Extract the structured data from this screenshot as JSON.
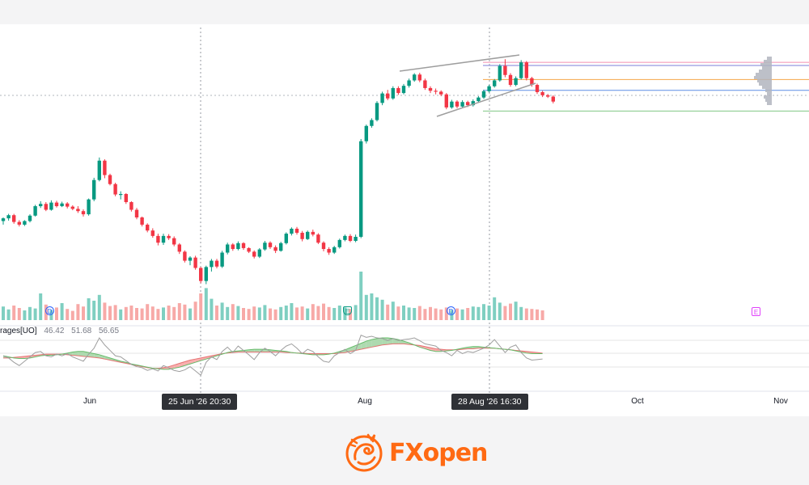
{
  "chart_data": {
    "type": "candlestick",
    "title": "",
    "xlabel": "",
    "ylabel": "",
    "x_ticks": [
      "Jun",
      "Aug",
      "Oct",
      "Nov"
    ],
    "crosshair_labels": [
      "25 Jun '26   20:30",
      "28 Aug '26   16:30"
    ],
    "indicator": {
      "label": "rages[UO]",
      "values": [
        "46.42",
        "51.68",
        "56.65"
      ]
    },
    "events": {
      "dividends": [
        "D",
        "D"
      ],
      "earnings": [
        "E",
        "E"
      ]
    },
    "colors": {
      "up": "#089981",
      "down": "#f23645",
      "up_volume": "#7fcfc1",
      "down_volume": "#f7a9a7",
      "ma_bull_fill": "#a5d6a7",
      "ma_bear_fill": "#f8a5a5",
      "trendline": "#9e9e9e"
    },
    "candles": [
      [
        96.8,
        97.6,
        96.0,
        97.4
      ],
      [
        97.4,
        98.4,
        96.9,
        98.1
      ],
      [
        98.1,
        98.4,
        96.2,
        96.6
      ],
      [
        96.6,
        97.0,
        95.6,
        96.0
      ],
      [
        96.0,
        97.0,
        95.7,
        96.8
      ],
      [
        96.8,
        98.3,
        96.5,
        98.0
      ],
      [
        98.0,
        100.4,
        97.8,
        100.1
      ],
      [
        100.1,
        101.2,
        99.7,
        100.6
      ],
      [
        100.6,
        101.0,
        99.0,
        99.3
      ],
      [
        99.3,
        101.4,
        99.1,
        100.9
      ],
      [
        100.9,
        101.3,
        99.8,
        100.1
      ],
      [
        100.1,
        101.1,
        99.9,
        100.7
      ],
      [
        100.7,
        101.0,
        99.6,
        100.0
      ],
      [
        100.0,
        100.3,
        99.2,
        99.5
      ],
      [
        99.5,
        100.1,
        98.6,
        99.0
      ],
      [
        99.0,
        99.4,
        97.8,
        98.3
      ],
      [
        98.3,
        101.8,
        98.0,
        101.6
      ],
      [
        101.6,
        106.4,
        101.2,
        105.9
      ],
      [
        105.9,
        110.9,
        105.6,
        110.2
      ],
      [
        110.2,
        110.5,
        106.3,
        107.0
      ],
      [
        107.0,
        107.3,
        104.7,
        105.0
      ],
      [
        105.0,
        105.3,
        102.3,
        102.7
      ],
      [
        102.7,
        103.4,
        101.6,
        102.8
      ],
      [
        102.8,
        103.0,
        100.6,
        101.0
      ],
      [
        101.0,
        101.2,
        98.9,
        99.3
      ],
      [
        99.3,
        99.7,
        97.2,
        97.6
      ],
      [
        97.6,
        97.8,
        95.6,
        96.0
      ],
      [
        96.0,
        96.3,
        94.3,
        94.7
      ],
      [
        94.7,
        95.2,
        93.1,
        93.5
      ],
      [
        93.5,
        94.0,
        91.4,
        92.0
      ],
      [
        92.0,
        94.0,
        91.5,
        93.5
      ],
      [
        93.5,
        93.9,
        92.6,
        93.0
      ],
      [
        93.0,
        93.4,
        91.2,
        91.6
      ],
      [
        91.6,
        91.9,
        89.5,
        90.0
      ],
      [
        90.0,
        90.3,
        87.6,
        88.0
      ],
      [
        88.0,
        89.0,
        87.0,
        88.7
      ],
      [
        88.7,
        89.1,
        86.0,
        86.4
      ],
      [
        86.4,
        86.6,
        83.0,
        83.5
      ],
      [
        83.5,
        86.9,
        82.8,
        86.6
      ],
      [
        86.6,
        88.4,
        85.6,
        88.0
      ],
      [
        88.0,
        88.4,
        86.3,
        86.7
      ],
      [
        86.7,
        90.2,
        86.4,
        89.8
      ],
      [
        89.8,
        92.0,
        89.4,
        91.6
      ],
      [
        91.6,
        91.9,
        90.2,
        90.6
      ],
      [
        90.6,
        92.3,
        90.3,
        91.9
      ],
      [
        91.9,
        92.1,
        90.4,
        90.8
      ],
      [
        90.8,
        91.0,
        89.7,
        90.0
      ],
      [
        90.0,
        90.3,
        88.5,
        88.9
      ],
      [
        88.9,
        90.8,
        88.6,
        90.5
      ],
      [
        90.5,
        92.4,
        90.2,
        92.0
      ],
      [
        92.0,
        92.3,
        90.6,
        91.0
      ],
      [
        91.0,
        91.4,
        89.7,
        90.2
      ],
      [
        90.2,
        92.2,
        90.0,
        91.9
      ],
      [
        91.9,
        94.3,
        91.6,
        94.0
      ],
      [
        94.0,
        95.4,
        93.6,
        95.1
      ],
      [
        95.1,
        95.5,
        93.8,
        94.2
      ],
      [
        94.2,
        94.6,
        92.3,
        92.8
      ],
      [
        92.8,
        94.7,
        92.6,
        94.4
      ],
      [
        94.4,
        94.9,
        93.4,
        93.8
      ],
      [
        93.8,
        94.1,
        91.7,
        92.0
      ],
      [
        92.0,
        92.3,
        90.1,
        90.6
      ],
      [
        90.6,
        91.0,
        89.3,
        89.8
      ],
      [
        89.8,
        91.3,
        89.5,
        91.0
      ],
      [
        91.0,
        92.9,
        90.7,
        92.6
      ],
      [
        92.6,
        93.8,
        92.3,
        93.5
      ],
      [
        93.5,
        93.9,
        92.1,
        92.4
      ],
      [
        92.4,
        93.8,
        92.1,
        93.3
      ],
      [
        93.3,
        115.0,
        93.0,
        114.5
      ],
      [
        114.5,
        118.2,
        114.0,
        117.9
      ],
      [
        117.9,
        119.6,
        117.5,
        119.2
      ],
      [
        119.2,
        123.4,
        118.9,
        123.0
      ],
      [
        123.0,
        125.5,
        122.5,
        125.1
      ],
      [
        125.1,
        125.9,
        123.6,
        124.0
      ],
      [
        124.0,
        126.7,
        123.7,
        126.3
      ],
      [
        126.3,
        126.7,
        124.8,
        125.2
      ],
      [
        125.2,
        127.2,
        124.9,
        126.8
      ],
      [
        126.8,
        128.4,
        126.4,
        128.0
      ],
      [
        128.0,
        129.6,
        127.7,
        129.3
      ],
      [
        129.3,
        129.7,
        127.6,
        128.0
      ],
      [
        128.0,
        128.4,
        125.9,
        126.3
      ],
      [
        126.3,
        126.7,
        125.2,
        125.7
      ],
      [
        125.7,
        126.2,
        124.9,
        125.5
      ],
      [
        125.5,
        125.8,
        124.5,
        124.9
      ],
      [
        124.9,
        125.2,
        121.6,
        122.0
      ],
      [
        122.0,
        123.7,
        121.7,
        123.3
      ],
      [
        123.3,
        123.6,
        121.8,
        122.2
      ],
      [
        122.2,
        123.6,
        121.9,
        123.2
      ],
      [
        123.2,
        123.5,
        122.1,
        122.5
      ],
      [
        122.5,
        123.8,
        122.2,
        123.4
      ],
      [
        123.4,
        124.5,
        123.1,
        124.2
      ],
      [
        124.2,
        125.9,
        123.9,
        125.6
      ],
      [
        125.6,
        127.0,
        125.3,
        126.7
      ],
      [
        126.7,
        128.3,
        126.4,
        128.0
      ],
      [
        128.0,
        131.6,
        127.7,
        131.2
      ],
      [
        131.2,
        132.7,
        128.7,
        129.2
      ],
      [
        129.2,
        129.6,
        126.6,
        127.0
      ],
      [
        127.0,
        128.9,
        126.7,
        128.5
      ],
      [
        128.5,
        132.5,
        128.2,
        132.0
      ],
      [
        132.0,
        132.3,
        128.0,
        128.5
      ],
      [
        128.5,
        128.8,
        126.6,
        127.0
      ],
      [
        127.0,
        127.3,
        125.0,
        125.4
      ],
      [
        125.4,
        125.7,
        124.3,
        124.7
      ],
      [
        124.7,
        125.0,
        124.1,
        124.4
      ],
      [
        124.4,
        124.7,
        122.9,
        123.3
      ]
    ],
    "volumes": [
      0.28,
      0.22,
      0.3,
      0.25,
      0.2,
      0.27,
      0.24,
      0.55,
      0.32,
      0.21,
      0.26,
      0.35,
      0.23,
      0.19,
      0.33,
      0.28,
      0.45,
      0.4,
      0.52,
      0.36,
      0.29,
      0.31,
      0.22,
      0.27,
      0.3,
      0.25,
      0.24,
      0.33,
      0.28,
      0.23,
      0.26,
      0.3,
      0.27,
      0.35,
      0.32,
      0.24,
      0.38,
      0.55,
      0.66,
      0.44,
      0.3,
      0.36,
      0.27,
      0.33,
      0.29,
      0.25,
      0.23,
      0.28,
      0.26,
      0.31,
      0.24,
      0.22,
      0.27,
      0.3,
      0.35,
      0.26,
      0.28,
      0.24,
      0.33,
      0.29,
      0.34,
      0.27,
      0.25,
      0.3,
      0.26,
      0.23,
      0.31,
      1.0,
      0.52,
      0.55,
      0.47,
      0.42,
      0.32,
      0.38,
      0.28,
      0.3,
      0.26,
      0.25,
      0.29,
      0.23,
      0.27,
      0.24,
      0.22,
      0.26,
      0.21,
      0.24,
      0.22,
      0.25,
      0.28,
      0.27,
      0.33,
      0.3,
      0.47,
      0.36,
      0.29,
      0.34,
      0.38,
      0.27,
      0.24,
      0.23,
      0.22,
      0.2
    ],
    "oscillator_raw": [
      0.52,
      0.48,
      0.4,
      0.34,
      0.42,
      0.5,
      0.58,
      0.6,
      0.52,
      0.5,
      0.55,
      0.52,
      0.56,
      0.5,
      0.46,
      0.42,
      0.55,
      0.66,
      0.85,
      0.72,
      0.62,
      0.52,
      0.5,
      0.43,
      0.36,
      0.32,
      0.3,
      0.25,
      0.28,
      0.24,
      0.34,
      0.3,
      0.25,
      0.23,
      0.26,
      0.32,
      0.24,
      0.16,
      0.4,
      0.5,
      0.45,
      0.6,
      0.68,
      0.58,
      0.7,
      0.62,
      0.54,
      0.45,
      0.58,
      0.66,
      0.6,
      0.52,
      0.62,
      0.7,
      0.74,
      0.66,
      0.56,
      0.64,
      0.6,
      0.5,
      0.42,
      0.4,
      0.52,
      0.58,
      0.64,
      0.56,
      0.62,
      0.9,
      0.86,
      0.88,
      0.85,
      0.84,
      0.8,
      0.84,
      0.8,
      0.82,
      0.83,
      0.85,
      0.8,
      0.74,
      0.72,
      0.7,
      0.62,
      0.58,
      0.52,
      0.62,
      0.56,
      0.6,
      0.58,
      0.62,
      0.66,
      0.72,
      0.82,
      0.7,
      0.58,
      0.68,
      0.72,
      0.58,
      0.48,
      0.44,
      0.45,
      0.46
    ],
    "ma_fast": [
      0.52,
      0.5,
      0.48,
      0.47,
      0.47,
      0.48,
      0.5,
      0.52,
      0.53,
      0.53,
      0.54,
      0.55,
      0.57,
      0.59,
      0.6,
      0.6,
      0.58,
      0.56,
      0.54,
      0.51,
      0.48,
      0.45,
      0.42,
      0.4,
      0.37,
      0.35,
      0.33,
      0.31,
      0.29,
      0.28,
      0.27,
      0.27,
      0.29,
      0.31,
      0.34,
      0.37,
      0.4,
      0.43,
      0.46,
      0.49,
      0.52,
      0.55,
      0.58,
      0.6,
      0.61,
      0.62,
      0.63,
      0.64,
      0.64,
      0.64,
      0.63,
      0.62,
      0.61,
      0.6,
      0.58,
      0.57,
      0.56,
      0.55,
      0.54,
      0.54,
      0.54,
      0.55,
      0.57,
      0.6,
      0.63,
      0.67,
      0.71,
      0.75,
      0.79,
      0.82,
      0.84,
      0.85,
      0.85,
      0.84,
      0.82,
      0.79,
      0.76,
      0.72,
      0.68,
      0.65,
      0.62,
      0.6,
      0.6,
      0.61,
      0.62,
      0.64,
      0.66,
      0.68,
      0.69,
      0.69,
      0.68,
      0.67,
      0.66,
      0.65,
      0.64,
      0.63,
      0.61,
      0.59,
      0.57,
      0.56,
      0.56,
      0.56
    ],
    "ma_slow": [
      0.48,
      0.48,
      0.49,
      0.5,
      0.51,
      0.52,
      0.53,
      0.54,
      0.55,
      0.55,
      0.55,
      0.55,
      0.54,
      0.53,
      0.52,
      0.51,
      0.5,
      0.49,
      0.48,
      0.46,
      0.44,
      0.42,
      0.4,
      0.38,
      0.36,
      0.34,
      0.32,
      0.3,
      0.29,
      0.29,
      0.3,
      0.32,
      0.35,
      0.38,
      0.41,
      0.44,
      0.46,
      0.48,
      0.5,
      0.52,
      0.54,
      0.56,
      0.57,
      0.58,
      0.59,
      0.59,
      0.59,
      0.59,
      0.59,
      0.59,
      0.59,
      0.59,
      0.59,
      0.58,
      0.58,
      0.57,
      0.57,
      0.56,
      0.56,
      0.56,
      0.56,
      0.56,
      0.56,
      0.57,
      0.58,
      0.6,
      0.62,
      0.64,
      0.66,
      0.68,
      0.7,
      0.72,
      0.73,
      0.74,
      0.74,
      0.74,
      0.73,
      0.72,
      0.71,
      0.69,
      0.67,
      0.65,
      0.64,
      0.63,
      0.63,
      0.63,
      0.64,
      0.65,
      0.65,
      0.66,
      0.66,
      0.66,
      0.66,
      0.65,
      0.64,
      0.63,
      0.62,
      0.61,
      0.6,
      0.59,
      0.58,
      0.57
    ],
    "price_levels": [
      {
        "value": 132.0,
        "color": "#f48fb1"
      },
      {
        "value": 131.3,
        "color": "#7b7fd9"
      },
      {
        "value": 128.2,
        "color": "#f5a64a"
      },
      {
        "value": 125.8,
        "color": "#5c8ee6"
      },
      {
        "value": 121.2,
        "color": "#81c784"
      }
    ]
  },
  "brand": {
    "name": "FXopen",
    "color": "#ff6a13"
  }
}
